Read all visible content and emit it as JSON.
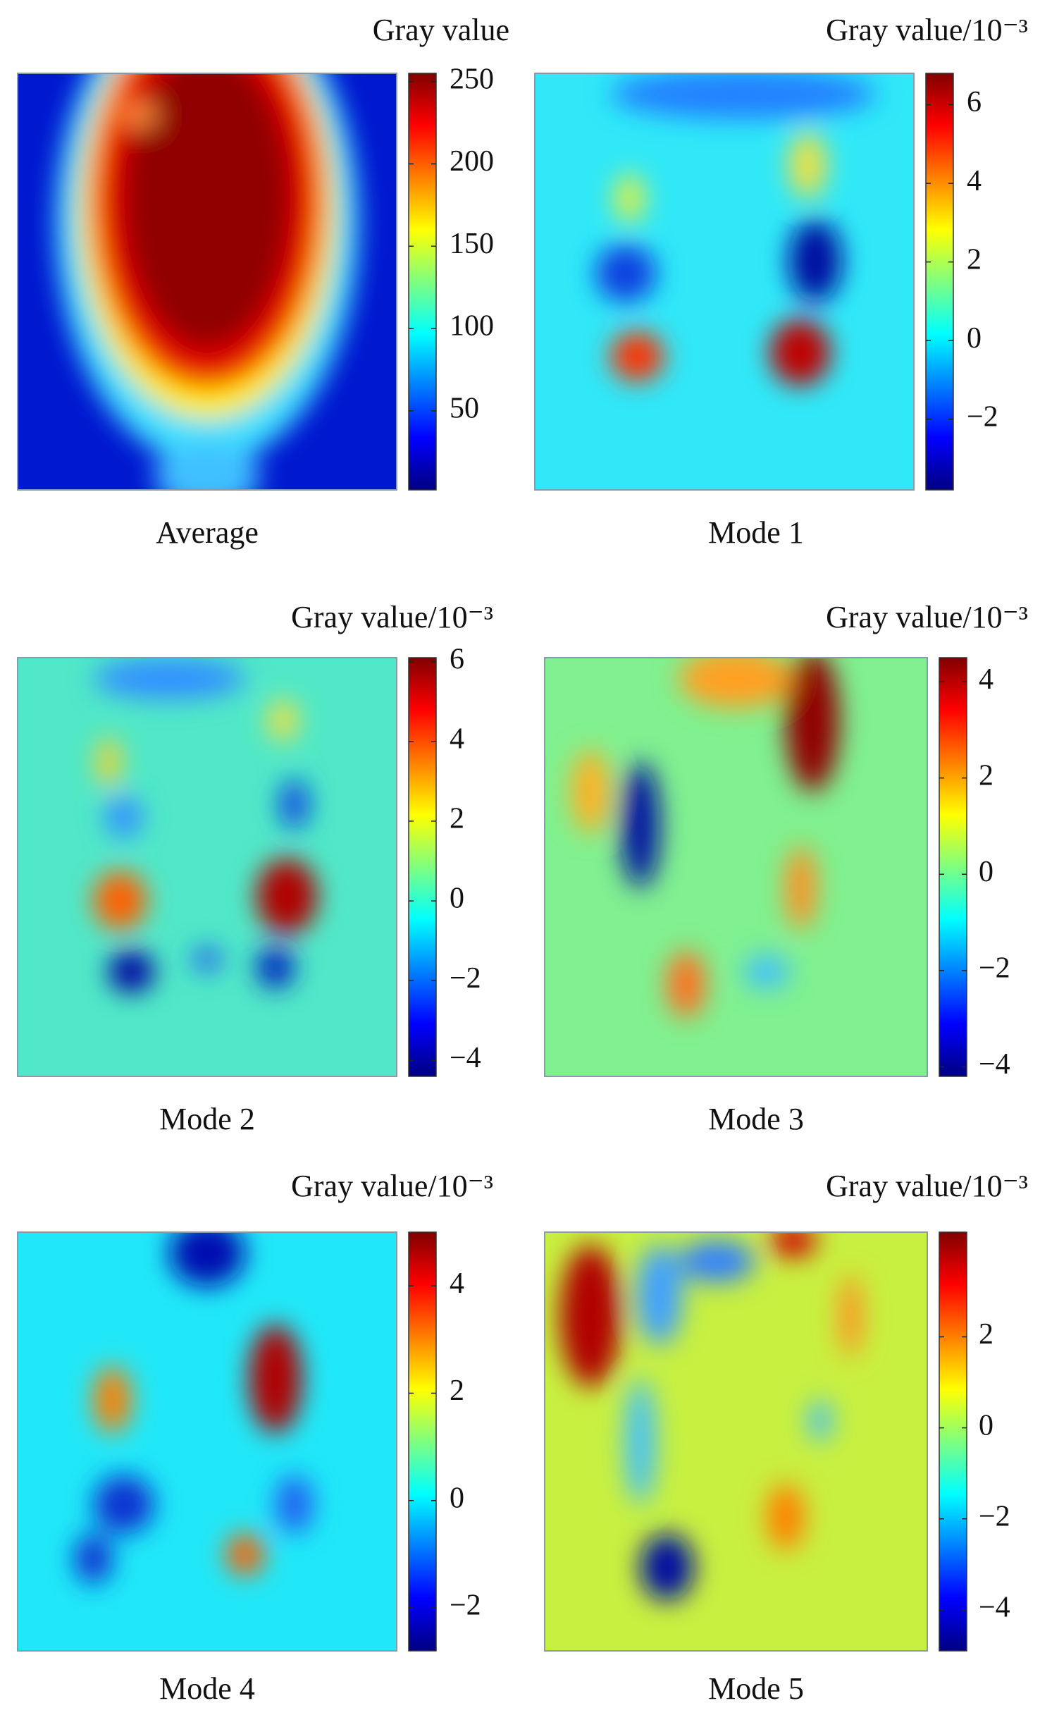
{
  "panels": [
    {
      "title": "Average",
      "colorbar": {
        "label": "Gray value",
        "clim": [
          2,
          255
        ],
        "ticks": [
          50,
          100,
          150,
          200,
          250
        ]
      }
    },
    {
      "title": "Mode 1",
      "colorbar": {
        "label": "Gray value/10⁻³",
        "clim": [
          -3.8,
          6.8
        ],
        "ticks": [
          {
            "value": -2,
            "label": "−2"
          },
          0,
          2,
          4,
          6
        ]
      }
    },
    {
      "title": "Mode 2",
      "colorbar": {
        "label": "Gray value/10⁻³",
        "clim": [
          -4.4,
          6.1
        ],
        "ticks": [
          {
            "value": -4,
            "label": "−4"
          },
          {
            "value": -2,
            "label": "−2"
          },
          0,
          2,
          4,
          6
        ]
      }
    },
    {
      "title": "Mode 3",
      "colorbar": {
        "label": "Gray value/10⁻³",
        "clim": [
          -4.2,
          4.5
        ],
        "ticks": [
          {
            "value": -4,
            "label": "−4"
          },
          {
            "value": -2,
            "label": "−2"
          },
          0,
          2,
          4
        ]
      }
    },
    {
      "title": "Mode 4",
      "colorbar": {
        "label": "Gray value/10⁻³",
        "clim": [
          -2.8,
          5
        ],
        "ticks": [
          {
            "value": -2,
            "label": "−2"
          },
          0,
          2,
          4
        ]
      }
    },
    {
      "title": "Mode 5",
      "colorbar": {
        "label": "Gray value/10⁻³",
        "clim": [
          -4.9,
          4.3
        ],
        "ticks": [
          {
            "value": -4,
            "label": "−4"
          },
          {
            "value": -2,
            "label": "−2"
          },
          0,
          2
        ]
      }
    }
  ]
}
